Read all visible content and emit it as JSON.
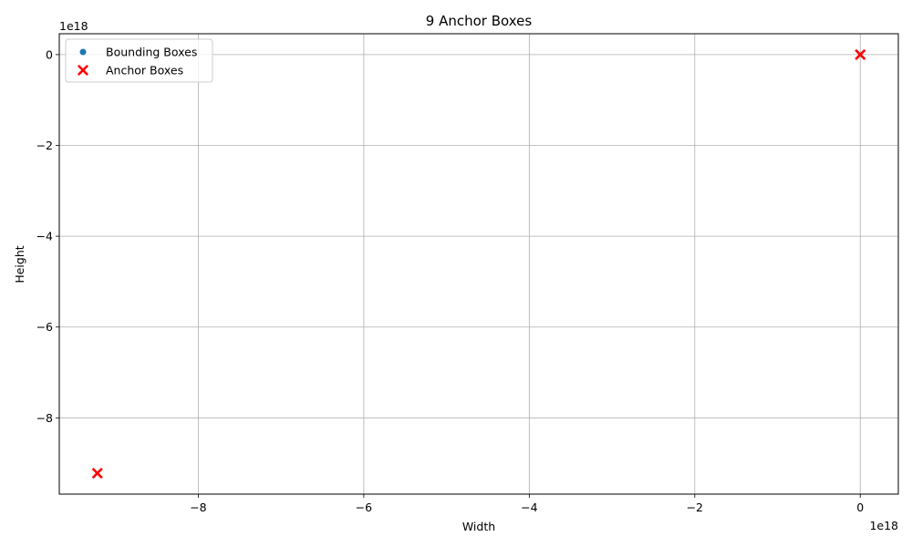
{
  "chart_data": {
    "type": "scatter",
    "title": "9 Anchor Boxes",
    "xlabel": "Width",
    "ylabel": "Height",
    "x_offset_label": "1e18",
    "y_offset_label": "1e18",
    "xlim": [
      -9.68,
      0.46
    ],
    "ylim": [
      -9.68,
      0.46
    ],
    "x_ticks": [
      {
        "value": -8,
        "label": "−8"
      },
      {
        "value": -6,
        "label": "−6"
      },
      {
        "value": -4,
        "label": "−4"
      },
      {
        "value": -2,
        "label": "−2"
      },
      {
        "value": 0,
        "label": "0"
      }
    ],
    "y_ticks": [
      {
        "value": -8,
        "label": "−8"
      },
      {
        "value": -6,
        "label": "−6"
      },
      {
        "value": -4,
        "label": "−4"
      },
      {
        "value": -2,
        "label": "−2"
      },
      {
        "value": 0,
        "label": "0"
      }
    ],
    "grid": true,
    "legend_position": "upper-left",
    "series": [
      {
        "name": "Bounding Boxes",
        "marker": "circle",
        "color": "#1f77b4",
        "points": []
      },
      {
        "name": "Anchor Boxes",
        "marker": "x-filled",
        "color": "#ff0000",
        "points": [
          {
            "x": 0,
            "y": 0
          },
          {
            "x": -9.22,
            "y": -9.22
          }
        ]
      }
    ]
  }
}
